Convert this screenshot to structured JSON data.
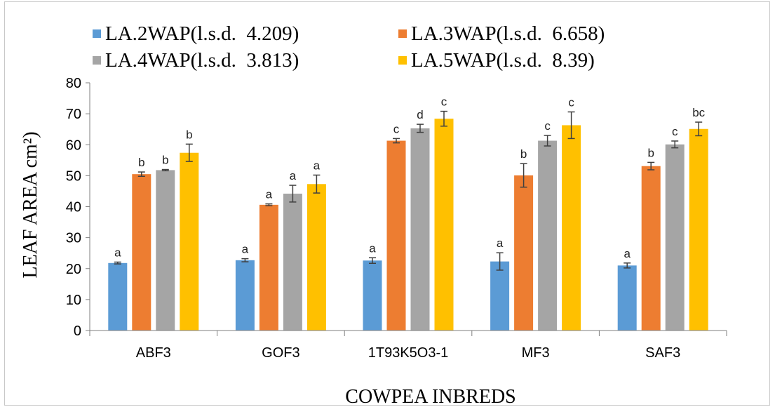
{
  "chart_data": {
    "type": "bar",
    "xlabel": "COWPEA INBREDS",
    "ylabel": "LEAF AREA cm²)",
    "ylim": [
      0,
      80
    ],
    "yticks": [
      0,
      10,
      20,
      30,
      40,
      50,
      60,
      70,
      80
    ],
    "grid": false,
    "legend_position": "top",
    "categories": [
      "ABF3",
      "GOF3",
      "1T93K5O3-1",
      "MF3",
      "SAF3"
    ],
    "series": [
      {
        "name": "LA.2WAP(l.s.d.  4.209)",
        "color": "#5b9bd5",
        "values": [
          21.8,
          22.7,
          22.6,
          22.3,
          21.0
        ],
        "errors": [
          0.3,
          0.5,
          0.9,
          2.8,
          0.8
        ],
        "labels": [
          "a",
          "a",
          "a",
          "a",
          "a"
        ]
      },
      {
        "name": "LA.3WAP(l.s.d.  6.658)",
        "color": "#ed7d31",
        "values": [
          50.5,
          40.6,
          61.3,
          50.1,
          53.1
        ],
        "errors": [
          0.7,
          0.3,
          0.7,
          3.8,
          1.2
        ],
        "labels": [
          "b",
          "a",
          "c",
          "b",
          "b"
        ]
      },
      {
        "name": "LA.4WAP(l.s.d.  3.813)",
        "color": "#a5a5a5",
        "values": [
          51.8,
          44.2,
          65.3,
          61.3,
          60.1
        ],
        "errors": [
          0.2,
          2.7,
          1.3,
          1.7,
          1.1
        ],
        "labels": [
          "b",
          "a",
          "d",
          "c",
          "c"
        ]
      },
      {
        "name": "LA.5WAP(l.s.d.  8.39)",
        "color": "#ffc000",
        "values": [
          57.4,
          47.3,
          68.4,
          66.3,
          65.1
        ],
        "errors": [
          2.8,
          2.9,
          2.4,
          4.3,
          2.2
        ],
        "labels": [
          "b",
          "a",
          "c",
          "c",
          "bc"
        ]
      }
    ]
  }
}
